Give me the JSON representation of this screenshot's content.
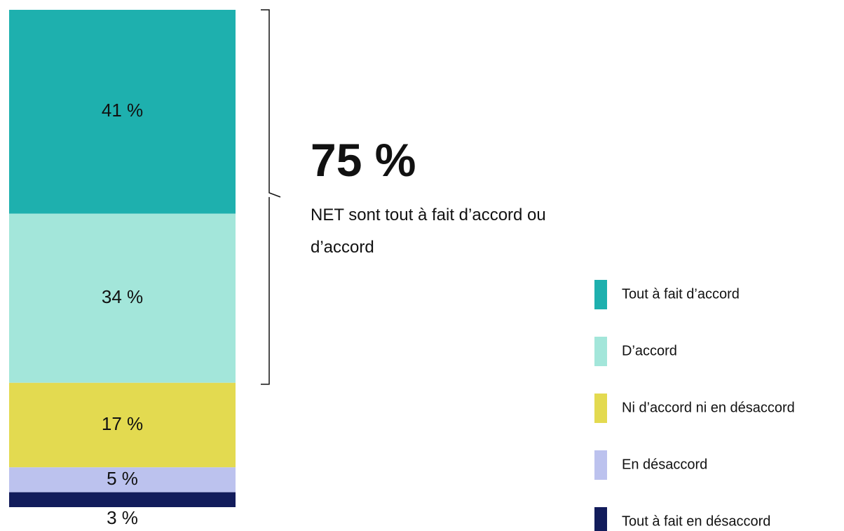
{
  "chart_data": {
    "type": "stacked-bar",
    "series": [
      {
        "name": "Tout à fait d’accord",
        "color": "#1eb0ae",
        "values": [
          41
        ],
        "value_labels": [
          "41 %"
        ]
      },
      {
        "name": "D’accord",
        "color": "#a3e6da",
        "values": [
          34
        ],
        "value_labels": [
          "34 %"
        ]
      },
      {
        "name": "Ni d’accord ni en désaccord",
        "color": "#e3da50",
        "values": [
          17
        ],
        "value_labels": [
          "17 %"
        ]
      },
      {
        "name": "En désaccord",
        "color": "#bcc2ee",
        "values": [
          5
        ],
        "value_labels": [
          "5 %"
        ]
      },
      {
        "name": "Tout à fait en désaccord",
        "color": "#121c5b",
        "values": [
          3
        ],
        "value_labels": [
          "3 %"
        ]
      }
    ],
    "annotation": {
      "value": 75,
      "label": "75 %",
      "text": "NET sont tout à fait d’accord ou d’accord"
    }
  }
}
